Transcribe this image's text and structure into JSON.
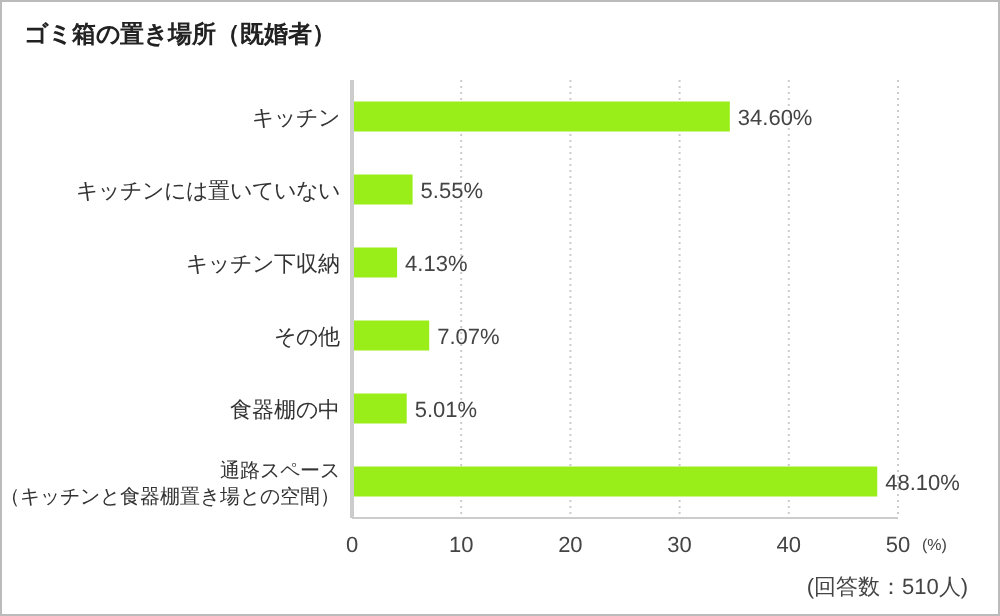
{
  "chart_data": {
    "type": "bar",
    "orientation": "horizontal",
    "title": "ゴミ箱の置き場所（既婚者）",
    "categories": [
      "キッチン",
      "キッチンには置いていない",
      "キッチン下収納",
      "その他",
      "食器棚の中",
      "通路スペース（キッチンと食器棚置き場との空間）"
    ],
    "values": [
      34.6,
      5.55,
      4.13,
      7.07,
      5.01,
      48.1
    ],
    "value_labels": [
      "34.60%",
      "5.55%",
      "4.13%",
      "7.07%",
      "5.01%",
      "48.10%"
    ],
    "color": "#99ee1a",
    "xlim": [
      0,
      50
    ],
    "xticks": [
      0,
      10,
      20,
      30,
      40,
      50
    ],
    "xlabel": "(%)",
    "grid": "x",
    "annotations": [
      "(回答数：510人)"
    ]
  }
}
